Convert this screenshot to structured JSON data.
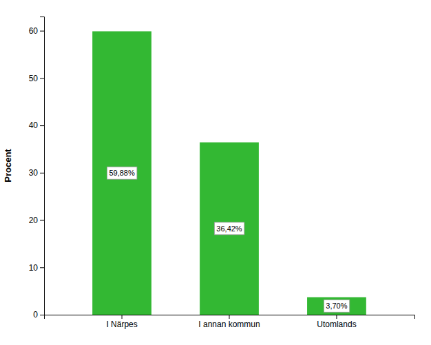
{
  "chart_data": {
    "type": "bar",
    "categories": [
      "I Närpes",
      "I annan kommun",
      "Utomlands"
    ],
    "values": [
      59.88,
      36.42,
      3.7
    ],
    "value_labels": [
      "59,88%",
      "36,42%",
      "3,70%"
    ],
    "data_labels": true,
    "color": "#33b833",
    "ylabel": "Procent",
    "ylim": [
      0,
      63
    ],
    "yticks": [
      0,
      10,
      20,
      30,
      40,
      50,
      60
    ],
    "grid": false
  }
}
